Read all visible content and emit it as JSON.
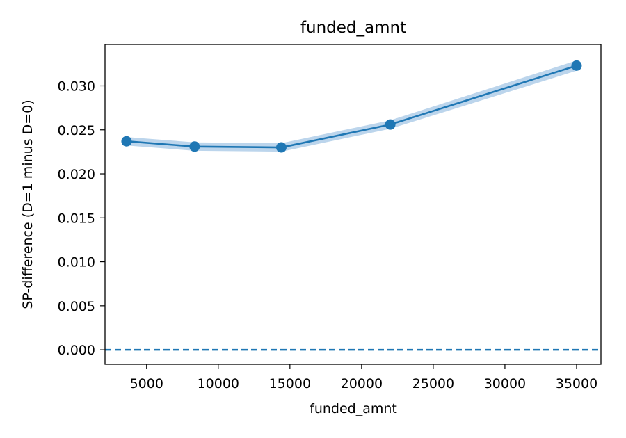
{
  "chart_data": {
    "type": "line",
    "title": "funded_amnt",
    "xlabel": "funded_amnt",
    "ylabel": "SP-difference (D=1 minus D=0)",
    "x": [
      3600,
      8350,
      14400,
      22000,
      35000
    ],
    "series": [
      {
        "values": [
          0.0237,
          0.0231,
          0.023,
          0.0256,
          0.0323
        ],
        "lower": [
          0.0233,
          0.0227,
          0.0226,
          0.0252,
          0.0318
        ],
        "upper": [
          0.0241,
          0.0235,
          0.0234,
          0.026,
          0.0328
        ],
        "color": "#1f77b4",
        "band_color": "#a6c8e6"
      }
    ],
    "reference_line": {
      "y": 0.0,
      "style": "dashed",
      "color": "#1f77b4"
    },
    "xlim": [
      2100,
      36700
    ],
    "ylim": [
      -0.00165,
      0.0347
    ],
    "xticks": [
      5000,
      10000,
      15000,
      20000,
      25000,
      30000,
      35000
    ],
    "xtick_labels": [
      "5000",
      "10000",
      "15000",
      "20000",
      "25000",
      "30000",
      "35000"
    ],
    "yticks": [
      0.0,
      0.005,
      0.01,
      0.015,
      0.02,
      0.025,
      0.03
    ],
    "ytick_labels": [
      "0.000",
      "0.005",
      "0.010",
      "0.015",
      "0.020",
      "0.025",
      "0.030"
    ],
    "grid": false,
    "legend": false
  }
}
